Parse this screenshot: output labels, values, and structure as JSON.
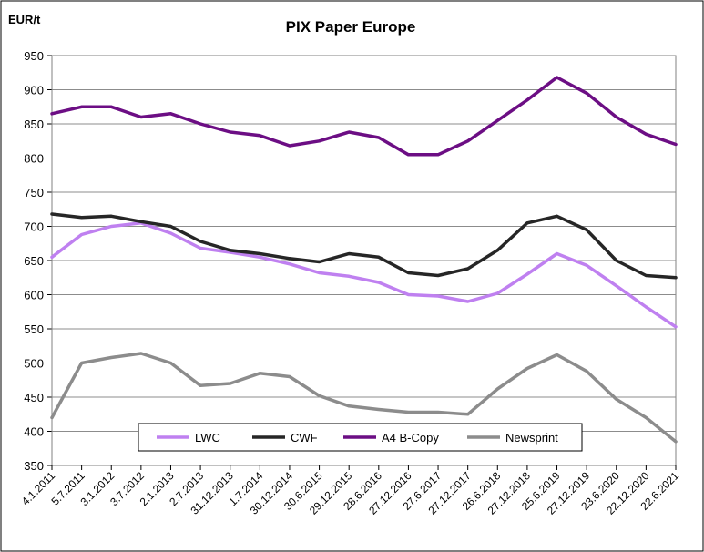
{
  "chart_data": {
    "type": "line",
    "title": "PIX Paper Europe",
    "ylabel": "EUR/t",
    "xlabel": "",
    "ylim": [
      350,
      950
    ],
    "yticks": [
      350,
      400,
      450,
      500,
      550,
      600,
      650,
      700,
      750,
      800,
      850,
      900,
      950
    ],
    "grid": true,
    "legend_position": "bottom",
    "x": [
      "4.1.2011",
      "5.7.2011",
      "3.1.2012",
      "3.7.2012",
      "2.1.2013",
      "2.7.2013",
      "31.12.2013",
      "1.7.2014",
      "30.12.2014",
      "30.6.2015",
      "29.12.2015",
      "28.6.2016",
      "27.12.2016",
      "27.6.2017",
      "27.12.2017",
      "26.6.2018",
      "27.12.2018",
      "25.6.2019",
      "27.12.2019",
      "23.6.2020",
      "22.12.2020",
      "22.6.2021"
    ],
    "series": [
      {
        "name": "LWC",
        "color": "#bf80f0",
        "values": [
          655,
          688,
          700,
          705,
          690,
          668,
          662,
          655,
          645,
          632,
          627,
          618,
          600,
          598,
          590,
          602,
          630,
          660,
          643,
          613,
          582,
          553
        ]
      },
      {
        "name": "CWF",
        "color": "#262626",
        "values": [
          718,
          713,
          715,
          707,
          700,
          678,
          665,
          660,
          653,
          648,
          660,
          655,
          632,
          628,
          638,
          665,
          705,
          715,
          695,
          650,
          628,
          625
        ]
      },
      {
        "name": "A4 B-Copy",
        "color": "#6c0e84",
        "values": [
          865,
          875,
          875,
          860,
          865,
          850,
          838,
          833,
          818,
          825,
          838,
          830,
          805,
          805,
          825,
          855,
          885,
          918,
          895,
          860,
          835,
          820
        ]
      },
      {
        "name": "Newsprint",
        "color": "#8c8c8c",
        "values": [
          420,
          500,
          508,
          514,
          500,
          467,
          470,
          485,
          480,
          452,
          437,
          432,
          428,
          428,
          425,
          462,
          492,
          512,
          488,
          447,
          420,
          385
        ]
      }
    ]
  }
}
